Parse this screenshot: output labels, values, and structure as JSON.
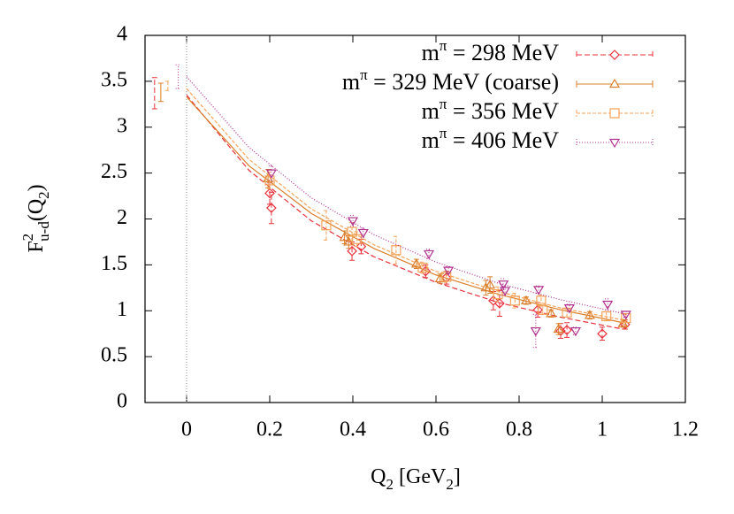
{
  "chart_data": {
    "type": "errorbar-scatter",
    "x_label": "Q2 [GeV2]",
    "y_label": "F2u-d(Q2)",
    "xlim": [
      -0.1,
      1.2
    ],
    "xticks": [
      0,
      0.2,
      0.4,
      0.6,
      0.8,
      1,
      1.2
    ],
    "ylim": [
      0,
      4
    ],
    "yticks": [
      0,
      0.5,
      1,
      1.5,
      2,
      2.5,
      3,
      3.5,
      4
    ],
    "legend": "top-right",
    "series": [
      {
        "name": "mπ = 298 MeV",
        "color": "#e8323c",
        "marker": "diamond",
        "dash": "6,3",
        "x": [
          0.2,
          0.204,
          0.398,
          0.42,
          0.575,
          0.625,
          0.738,
          0.753,
          0.845,
          0.9,
          0.915,
          1.0,
          1.055
        ],
        "values": [
          2.28,
          2.12,
          1.65,
          1.7,
          1.43,
          1.36,
          1.11,
          1.08,
          1.01,
          0.78,
          0.79,
          0.75,
          0.85
        ],
        "errors": [
          0.12,
          0.17,
          0.1,
          0.08,
          0.07,
          0.07,
          0.1,
          0.14,
          0.08,
          0.08,
          0.08,
          0.07,
          0.05
        ],
        "zero_x": -0.077,
        "zero_value": 3.37,
        "zero_error": 0.17,
        "fit": {
          "x": [
            0,
            0.15,
            0.3,
            0.45,
            0.6,
            0.75,
            0.9,
            1.05
          ],
          "values": [
            3.35,
            2.53,
            1.98,
            1.59,
            1.31,
            1.09,
            0.93,
            0.8
          ]
        }
      },
      {
        "name": "mπ = 329 MeV (coarse)",
        "color": "#d97f2b",
        "marker": "triangle",
        "dash": "none",
        "x": [
          0.196,
          0.38,
          0.39,
          0.553,
          0.61,
          0.72,
          0.73,
          0.817,
          0.877,
          0.895,
          0.97,
          1.05
        ],
        "values": [
          2.44,
          1.8,
          1.75,
          1.51,
          1.35,
          1.25,
          1.28,
          1.11,
          0.97,
          0.8,
          0.95,
          0.86
        ],
        "errors": [
          0.1,
          0.07,
          0.07,
          0.05,
          0.05,
          0.08,
          0.09,
          0.04,
          0.04,
          0.06,
          0.04,
          0.04
        ],
        "zero_x": -0.062,
        "zero_value": 3.38,
        "zero_error": 0.1,
        "fit": {
          "x": [
            0,
            0.15,
            0.3,
            0.45,
            0.6,
            0.75,
            0.9,
            1.05
          ],
          "values": [
            3.33,
            2.58,
            2.06,
            1.68,
            1.39,
            1.18,
            1.01,
            0.87
          ]
        }
      },
      {
        "name": "mπ = 356 MeV",
        "color": "#f4a35a",
        "marker": "square",
        "dash": "4,2",
        "x": [
          0.2,
          0.336,
          0.398,
          0.41,
          0.504,
          0.568,
          0.625,
          0.749,
          0.79,
          0.853,
          0.857,
          0.915,
          1.01,
          1.057
        ],
        "values": [
          2.42,
          1.93,
          1.86,
          1.78,
          1.66,
          1.47,
          1.37,
          1.18,
          1.11,
          1.11,
          1.01,
          0.98,
          0.94,
          0.92
        ],
        "errors": [
          0.09,
          0.16,
          0.1,
          0.08,
          0.15,
          0.06,
          0.06,
          0.08,
          0.08,
          0.06,
          0.05,
          0.05,
          0.05,
          0.04
        ],
        "zero_x": -0.045,
        "zero_value": 3.45,
        "zero_error": 0.05,
        "fit": {
          "x": [
            0,
            0.15,
            0.3,
            0.45,
            0.6,
            0.75,
            0.9,
            1.05
          ],
          "values": [
            3.42,
            2.65,
            2.11,
            1.72,
            1.43,
            1.21,
            1.03,
            0.9
          ]
        }
      },
      {
        "name": "mπ = 406 MeV",
        "color": "#b0308e",
        "marker": "triangle-down",
        "dash": "1,2",
        "x": [
          0.204,
          0.4,
          0.425,
          0.583,
          0.63,
          0.762,
          0.766,
          0.847,
          0.84,
          0.921,
          0.936,
          1.013,
          1.057
        ],
        "values": [
          2.5,
          1.98,
          1.85,
          1.62,
          1.44,
          1.29,
          1.22,
          1.23,
          0.78,
          1.03,
          0.78,
          1.07,
          0.96
        ],
        "errors": [
          0.08,
          0.06,
          0.05,
          0.05,
          0.04,
          0.06,
          0.05,
          0.04,
          0.18,
          0.04,
          0.04,
          0.06,
          0.03
        ],
        "zero_x": -0.02,
        "zero_value": 3.55,
        "zero_error": 0.13,
        "fit": {
          "x": [
            0,
            0.15,
            0.3,
            0.45,
            0.6,
            0.75,
            0.9,
            1.05
          ],
          "values": [
            3.55,
            2.78,
            2.23,
            1.83,
            1.53,
            1.3,
            1.12,
            0.97
          ]
        }
      }
    ]
  }
}
